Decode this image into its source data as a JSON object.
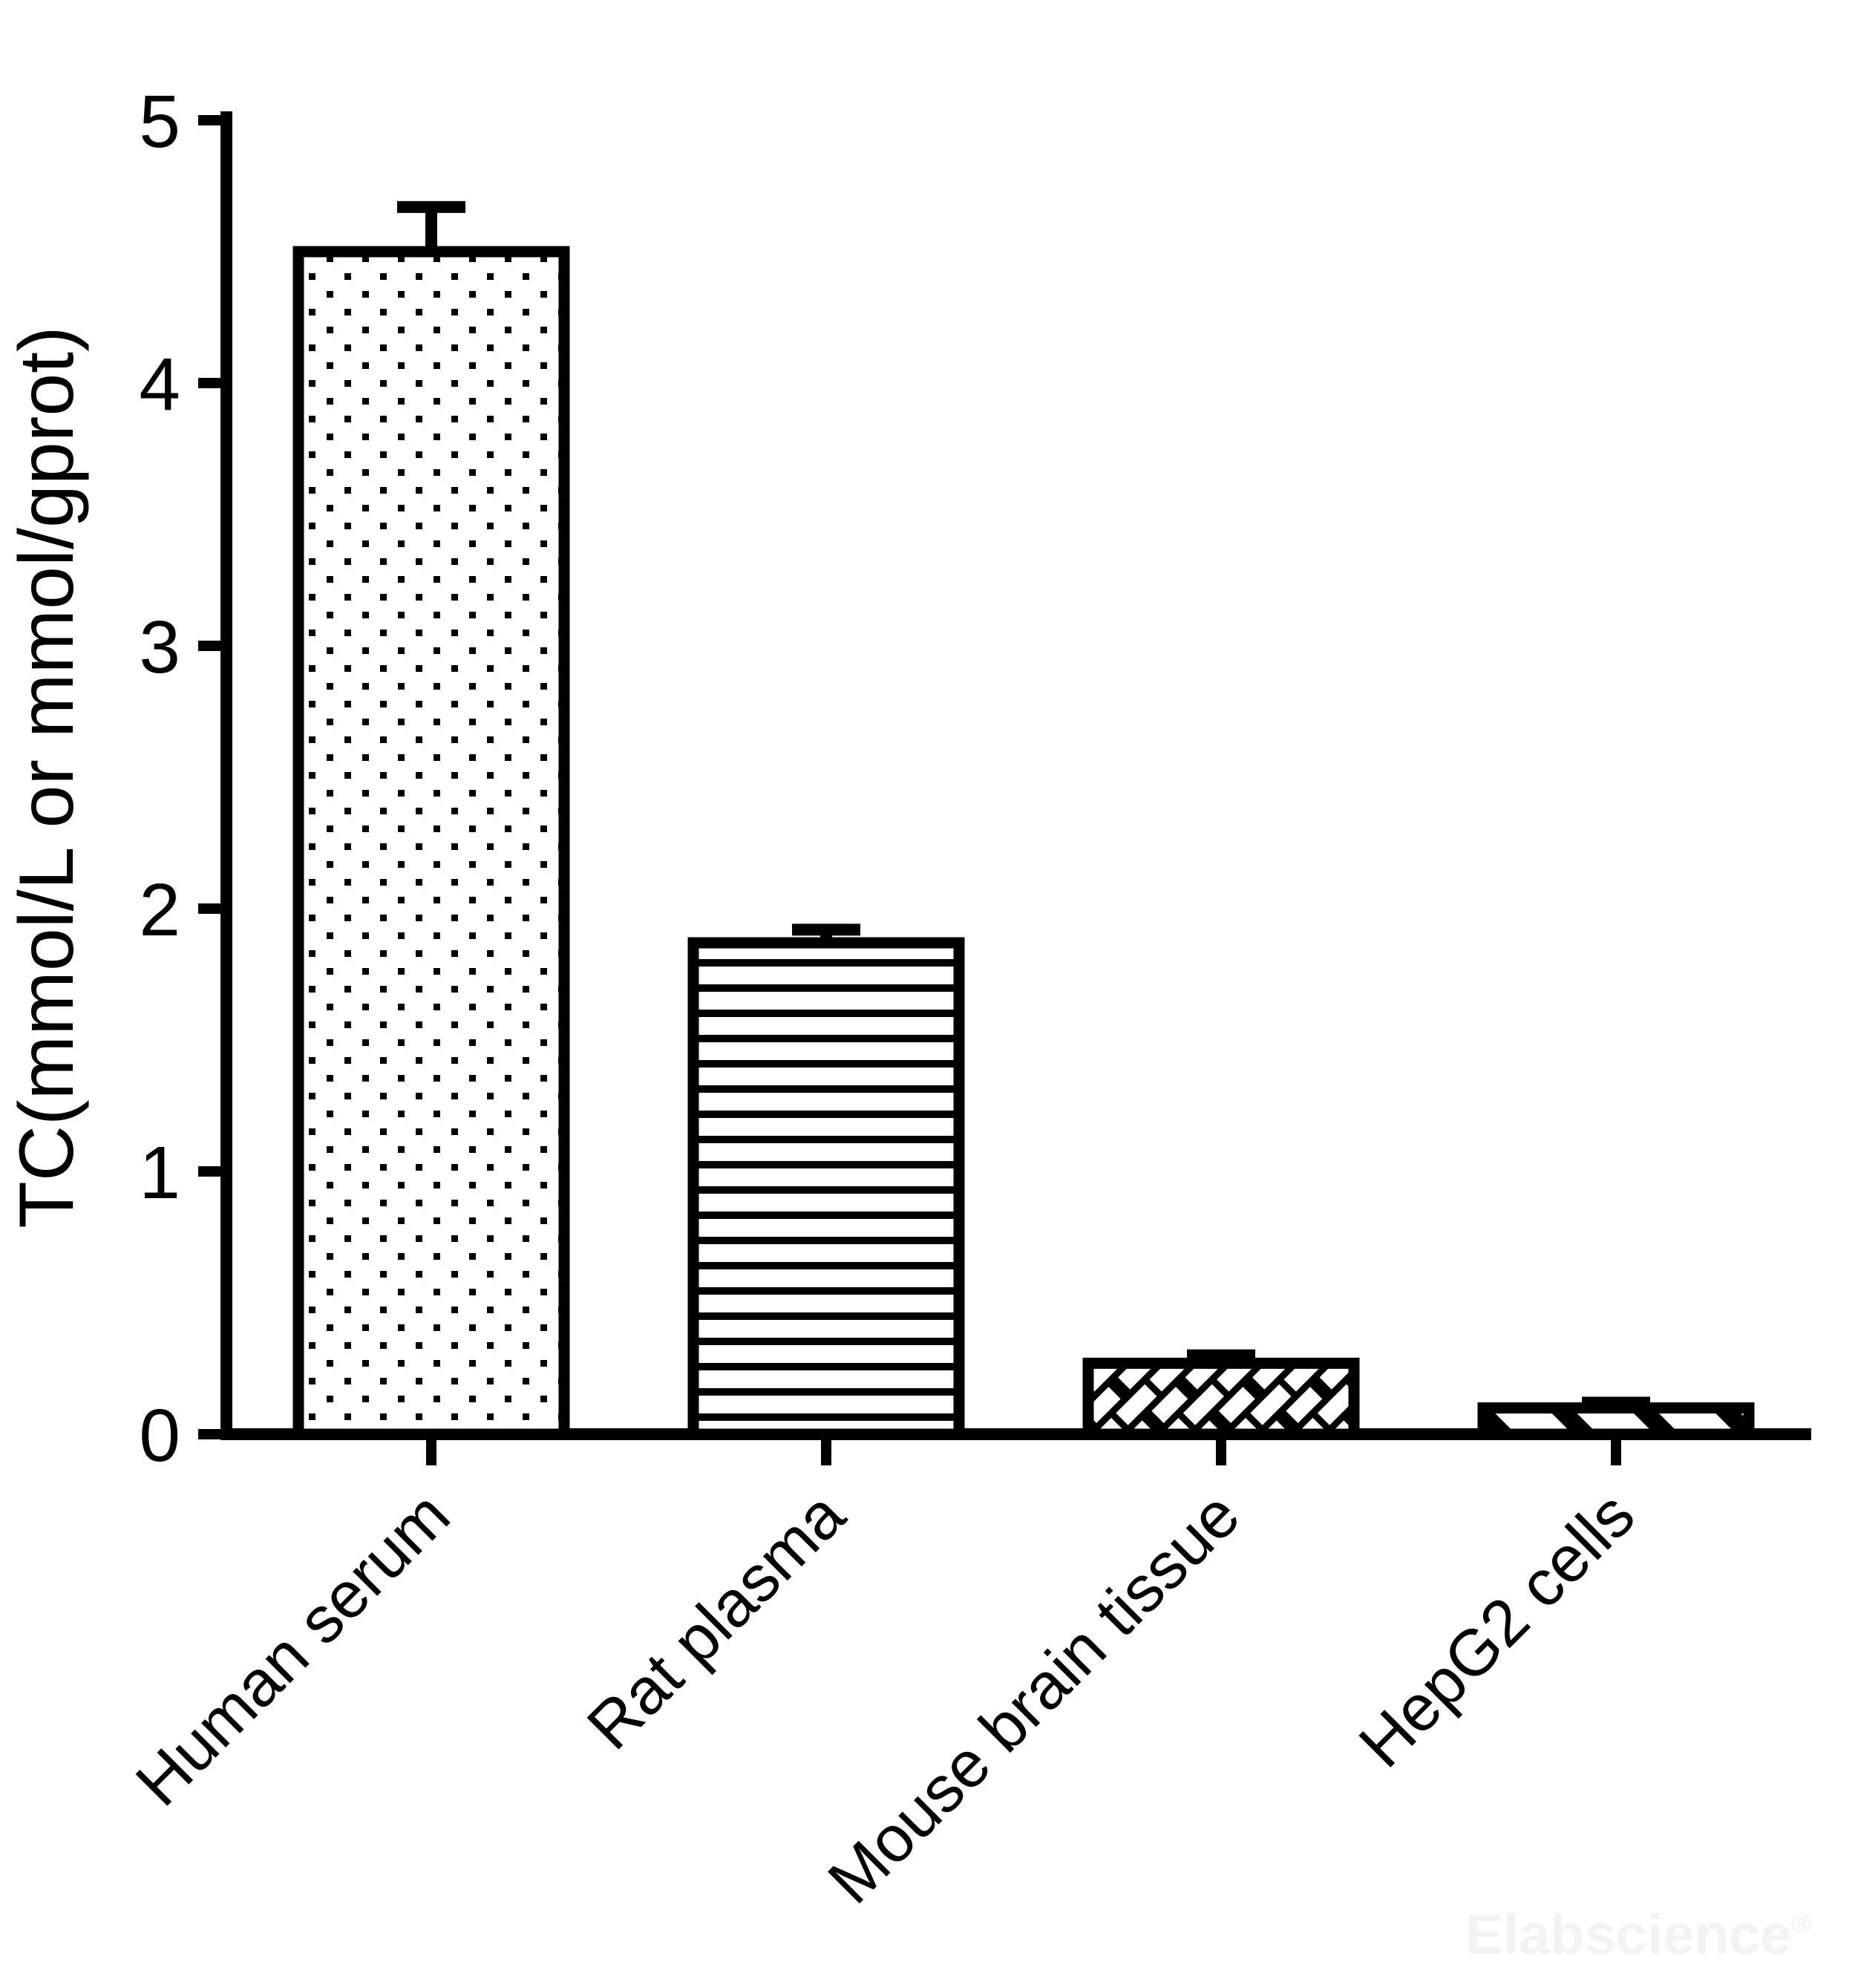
{
  "chart_data": {
    "type": "bar",
    "title": "",
    "xlabel": "",
    "ylabel": "TC(mmol/L or mmol/gprot)",
    "categories": [
      "Human serum",
      "Rat plasma",
      "Mouse brain tissue",
      "HepG2 cells"
    ],
    "series": [
      {
        "name": "TC",
        "values": [
          4.5,
          1.87,
          0.27,
          0.1
        ],
        "errors": [
          0.17,
          0.05,
          0.03,
          0.02
        ]
      }
    ],
    "bar_fill_patterns": [
      "dots",
      "horizontal-lines",
      "diagonal-bricks",
      "diagonal-stripes"
    ],
    "bar_color": "#000000",
    "bar_background": "#ffffff",
    "ylim": [
      0,
      5
    ],
    "yticks": [
      0,
      1,
      2,
      3,
      4,
      5
    ],
    "ytick_labels": [
      "0",
      "1",
      "2",
      "3",
      "4",
      "5"
    ],
    "grid": "off",
    "legend": "none",
    "error_bar_style": "upper-cap-only",
    "x_label_rotation_deg": 45
  },
  "watermark": {
    "text": "Elabscience",
    "registered_mark": "®"
  }
}
